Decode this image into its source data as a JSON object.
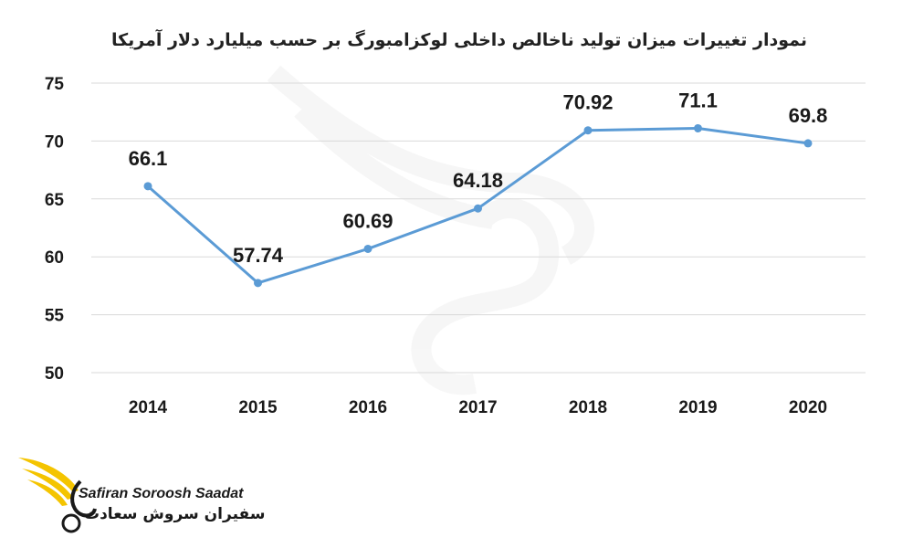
{
  "chart_data": {
    "type": "line",
    "title": "نمودار تغییرات میزان تولید ناخالص داخلی لوکزامبورگ بر حسب میلیارد دلار آمریکا",
    "categories": [
      "2014",
      "2015",
      "2016",
      "2017",
      "2018",
      "2019",
      "2020"
    ],
    "values": [
      66.1,
      57.74,
      60.69,
      64.18,
      70.92,
      71.1,
      69.8
    ],
    "data_labels": [
      "66.1",
      "57.74",
      "60.69",
      "64.18",
      "70.92",
      "71.1",
      "69.8"
    ],
    "ylim": [
      50,
      75
    ],
    "yticks": [
      "50",
      "55",
      "60",
      "65",
      "70",
      "75"
    ],
    "grid": true,
    "legend": "none",
    "line_color": "#5b9bd5"
  },
  "logo": {
    "name_en": "Safiran Soroosh Saadat",
    "name_fa": "سفیران سروش سعادت",
    "accent_color": "#f4c400"
  }
}
